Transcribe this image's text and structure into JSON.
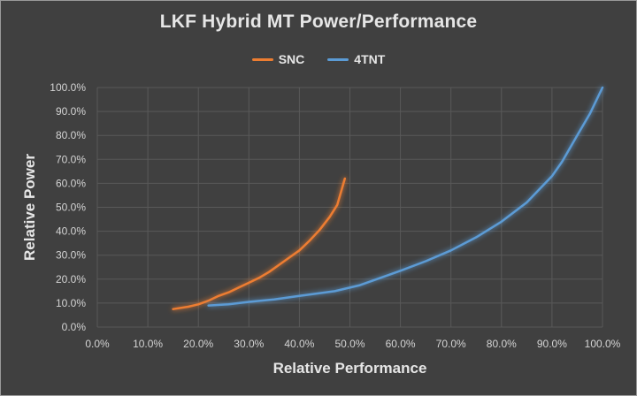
{
  "chart_data": {
    "type": "line",
    "title": "LKF Hybrid MT Power/Performance",
    "xlabel": "Relative Performance",
    "ylabel": "Relative Power",
    "xlim": [
      0,
      100
    ],
    "ylim": [
      0,
      100
    ],
    "x_ticks": [
      "0.0%",
      "10.0%",
      "20.0%",
      "30.0%",
      "40.0%",
      "50.0%",
      "60.0%",
      "70.0%",
      "80.0%",
      "90.0%",
      "100.0%"
    ],
    "y_ticks": [
      "0.0%",
      "10.0%",
      "20.0%",
      "30.0%",
      "40.0%",
      "50.0%",
      "60.0%",
      "70.0%",
      "80.0%",
      "90.0%",
      "100.0%"
    ],
    "grid": true,
    "legend_position": "top",
    "series": [
      {
        "name": "SNC",
        "color": "#ed7d31",
        "x": [
          15,
          18,
          20,
          22,
          24,
          26,
          28,
          30,
          32,
          34,
          36,
          38,
          40,
          42,
          44,
          46,
          47.5,
          49
        ],
        "y": [
          7.5,
          8.5,
          9.5,
          11,
          13,
          14.5,
          16.5,
          18.5,
          20.5,
          23,
          26,
          29,
          32,
          36,
          40.5,
          46,
          51,
          62
        ]
      },
      {
        "name": "4TNT",
        "color": "#5b9bd5",
        "x": [
          22,
          26,
          30,
          35,
          40,
          47,
          52,
          56,
          60,
          65,
          70,
          75,
          80,
          85,
          90,
          92,
          95,
          97.5,
          100
        ],
        "y": [
          9,
          9.5,
          10.5,
          11.5,
          13,
          15,
          17.5,
          20.5,
          23.5,
          27.5,
          32,
          37.5,
          44,
          52,
          63,
          69,
          80,
          89,
          100
        ]
      }
    ]
  }
}
